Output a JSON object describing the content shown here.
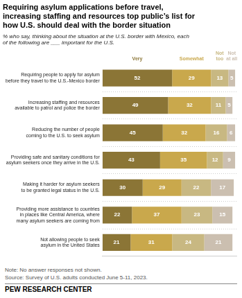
{
  "chart_data": {
    "type": "bar",
    "orientation": "horizontal",
    "stacked": true,
    "data_labels": true,
    "tick_labels": "y",
    "grid": true,
    "title": "Requiring asylum applications before travel,\nincreasing staffing and resources top public’s list for\nhow U.S. should deal with the border situation",
    "subtitle": "% who say, thinking about the situation at the U.S. border with Mexico, each\nof the following are ___ important for the U.S.",
    "annotations": [
      "Note: No answer responses not shown.",
      "Source: Survey of U.S. adults conducted June 5-11, 2023.",
      "PEW RESEARCH CENTER"
    ],
    "categories": [
      "Requiring people to apply for asylum\nbefore they travel to the U.S.-Mexico border",
      "Increasing staffing and resources\navailable to patrol and police the border",
      "Reducing the number of people\ncoming to the U.S. to seek asylum",
      "Providing safe and sanitary conditions for\nasylum seekers once they arrive in the U.S.",
      "Making it harder for asylum seekers\nto be granted legal status in the U.S.",
      "Providing more assistance to countries\nin places like Central America, where\nmany asylum seekers are coming from",
      "Not allowing people to seek\nasylum in the United States"
    ],
    "series": [
      {
        "name": "Very",
        "color": "#8B7536",
        "values": [
          52,
          49,
          45,
          43,
          30,
          22,
          21
        ]
      },
      {
        "name": "Somewhat",
        "color": "#C9A84C",
        "values": [
          29,
          32,
          32,
          35,
          29,
          37,
          31
        ]
      },
      {
        "name": "Not\ntoo",
        "color": "#C8B882",
        "values": [
          13,
          11,
          16,
          12,
          22,
          23,
          24
        ]
      },
      {
        "name": "Not\nat all",
        "color": "#CBBFB0",
        "values": [
          5,
          5,
          6,
          9,
          17,
          15,
          21
        ]
      }
    ],
    "xlim": [
      0,
      100
    ]
  }
}
